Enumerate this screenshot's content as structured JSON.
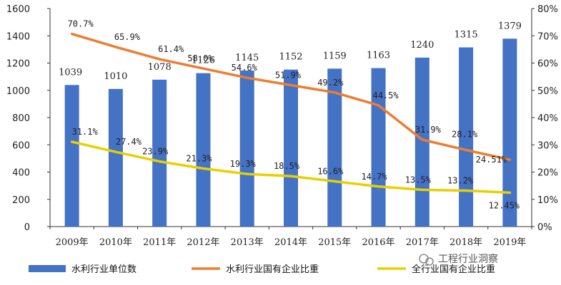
{
  "chart_data": {
    "type": "bar",
    "categories": [
      "2009年",
      "2010年",
      "2011年",
      "2012年",
      "2013年",
      "2014年",
      "2015年",
      "2016年",
      "2017年",
      "2018年",
      "2019年"
    ],
    "ylim_left": [
      0,
      1600
    ],
    "ylim_right": [
      0,
      80
    ],
    "yticks_left": [
      "0",
      "200",
      "400",
      "600",
      "800",
      "1000",
      "1200",
      "1400",
      "1600"
    ],
    "yticks_right": [
      "0%",
      "10%",
      "20%",
      "30%",
      "40%",
      "50%",
      "60%",
      "70%",
      "80%"
    ],
    "grid": false,
    "legend_position": "bottom",
    "series": [
      {
        "name": "水利行业单位数",
        "type": "bar",
        "axis": "left",
        "color": "#4472C4",
        "values": [
          1039,
          1010,
          1078,
          1126,
          1145,
          1152,
          1159,
          1163,
          1240,
          1315,
          1379
        ],
        "labels": [
          "1039",
          "1010",
          "1078",
          "1126",
          "1145",
          "1152",
          "1159",
          "1163",
          "1240",
          "1315",
          "1379"
        ]
      },
      {
        "name": "水利行业国有企业比重",
        "type": "line",
        "axis": "right",
        "color": "#ED7D31",
        "values": [
          70.7,
          65.9,
          61.4,
          58.0,
          54.6,
          51.9,
          49.2,
          44.5,
          31.9,
          28.1,
          24.51
        ],
        "labels": [
          "70.7%",
          "65.9%",
          "61.4%",
          "58.0%",
          "54.6%",
          "51.9%",
          "49.2%",
          "44.5%",
          "31.9%",
          "28.1%",
          "24.51%"
        ]
      },
      {
        "name": "全行业国有企业比重",
        "type": "line",
        "axis": "right",
        "color": "#E8D000",
        "values": [
          31.1,
          27.4,
          23.9,
          21.3,
          19.3,
          18.5,
          16.6,
          14.7,
          13.5,
          13.2,
          12.45
        ],
        "labels": [
          "31.1%",
          "27.4%",
          "23.9%",
          "21.3%",
          "19.3%",
          "18.5%",
          "16.6%",
          "14.7%",
          "13.5%",
          "13.2%",
          "12.45%"
        ]
      }
    ]
  },
  "watermark": {
    "text": "工程行业洞察",
    "icon": "wechat-icon"
  }
}
